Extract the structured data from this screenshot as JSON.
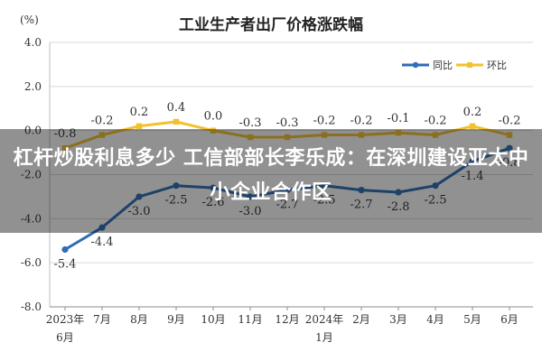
{
  "chart_data": {
    "type": "line",
    "title": "工业生产者出厂价格涨跌幅",
    "unit_label": "(%)",
    "categories": [
      [
        "2023年",
        "6月"
      ],
      [
        "7月"
      ],
      [
        "8月"
      ],
      [
        "9月"
      ],
      [
        "10月"
      ],
      [
        "11月"
      ],
      [
        "12月"
      ],
      [
        "2024年",
        "1月"
      ],
      [
        "2月"
      ],
      [
        "3月"
      ],
      [
        "4月"
      ],
      [
        "5月"
      ],
      [
        "6月"
      ]
    ],
    "ylim": [
      -8.0,
      4.0
    ],
    "yticks": [
      "4.0",
      "2.0",
      "0.0",
      "-2.0",
      "-4.0",
      "-6.0",
      "-8.0"
    ],
    "grid": true,
    "legend_position": "top-right",
    "series": [
      {
        "name": "同比",
        "color": "#2e6db4",
        "values": [
          -5.4,
          -4.4,
          -3.0,
          -2.5,
          -2.6,
          -3.0,
          -2.7,
          -2.5,
          -2.7,
          -2.8,
          -2.5,
          -1.4,
          -0.8
        ],
        "labels": [
          "-5.4",
          "-4.4",
          "-3.0",
          "-2.5",
          "-2.6",
          "-3.0",
          "-2.7",
          "-2.5",
          "-2.7",
          "-2.8",
          "-2.5",
          "-1.4",
          "-0.8"
        ]
      },
      {
        "name": "环比",
        "color": "#f2c12e",
        "values": [
          -0.8,
          -0.2,
          0.2,
          0.4,
          0.0,
          -0.3,
          -0.3,
          -0.2,
          -0.2,
          -0.1,
          -0.2,
          0.2,
          -0.2
        ],
        "labels": [
          "-0.8",
          "-0.2",
          "0.2",
          "0.4",
          "0.0",
          "-0.3",
          "-0.3",
          "-0.2",
          "-0.2",
          "-0.1",
          "-0.2",
          "0.2",
          "-0.2"
        ]
      }
    ]
  },
  "banner": {
    "headline": "杠杆炒股利息多少 工信部部长李乐成：在深圳建设亚太中小企业合作区",
    "background": "#000000"
  }
}
